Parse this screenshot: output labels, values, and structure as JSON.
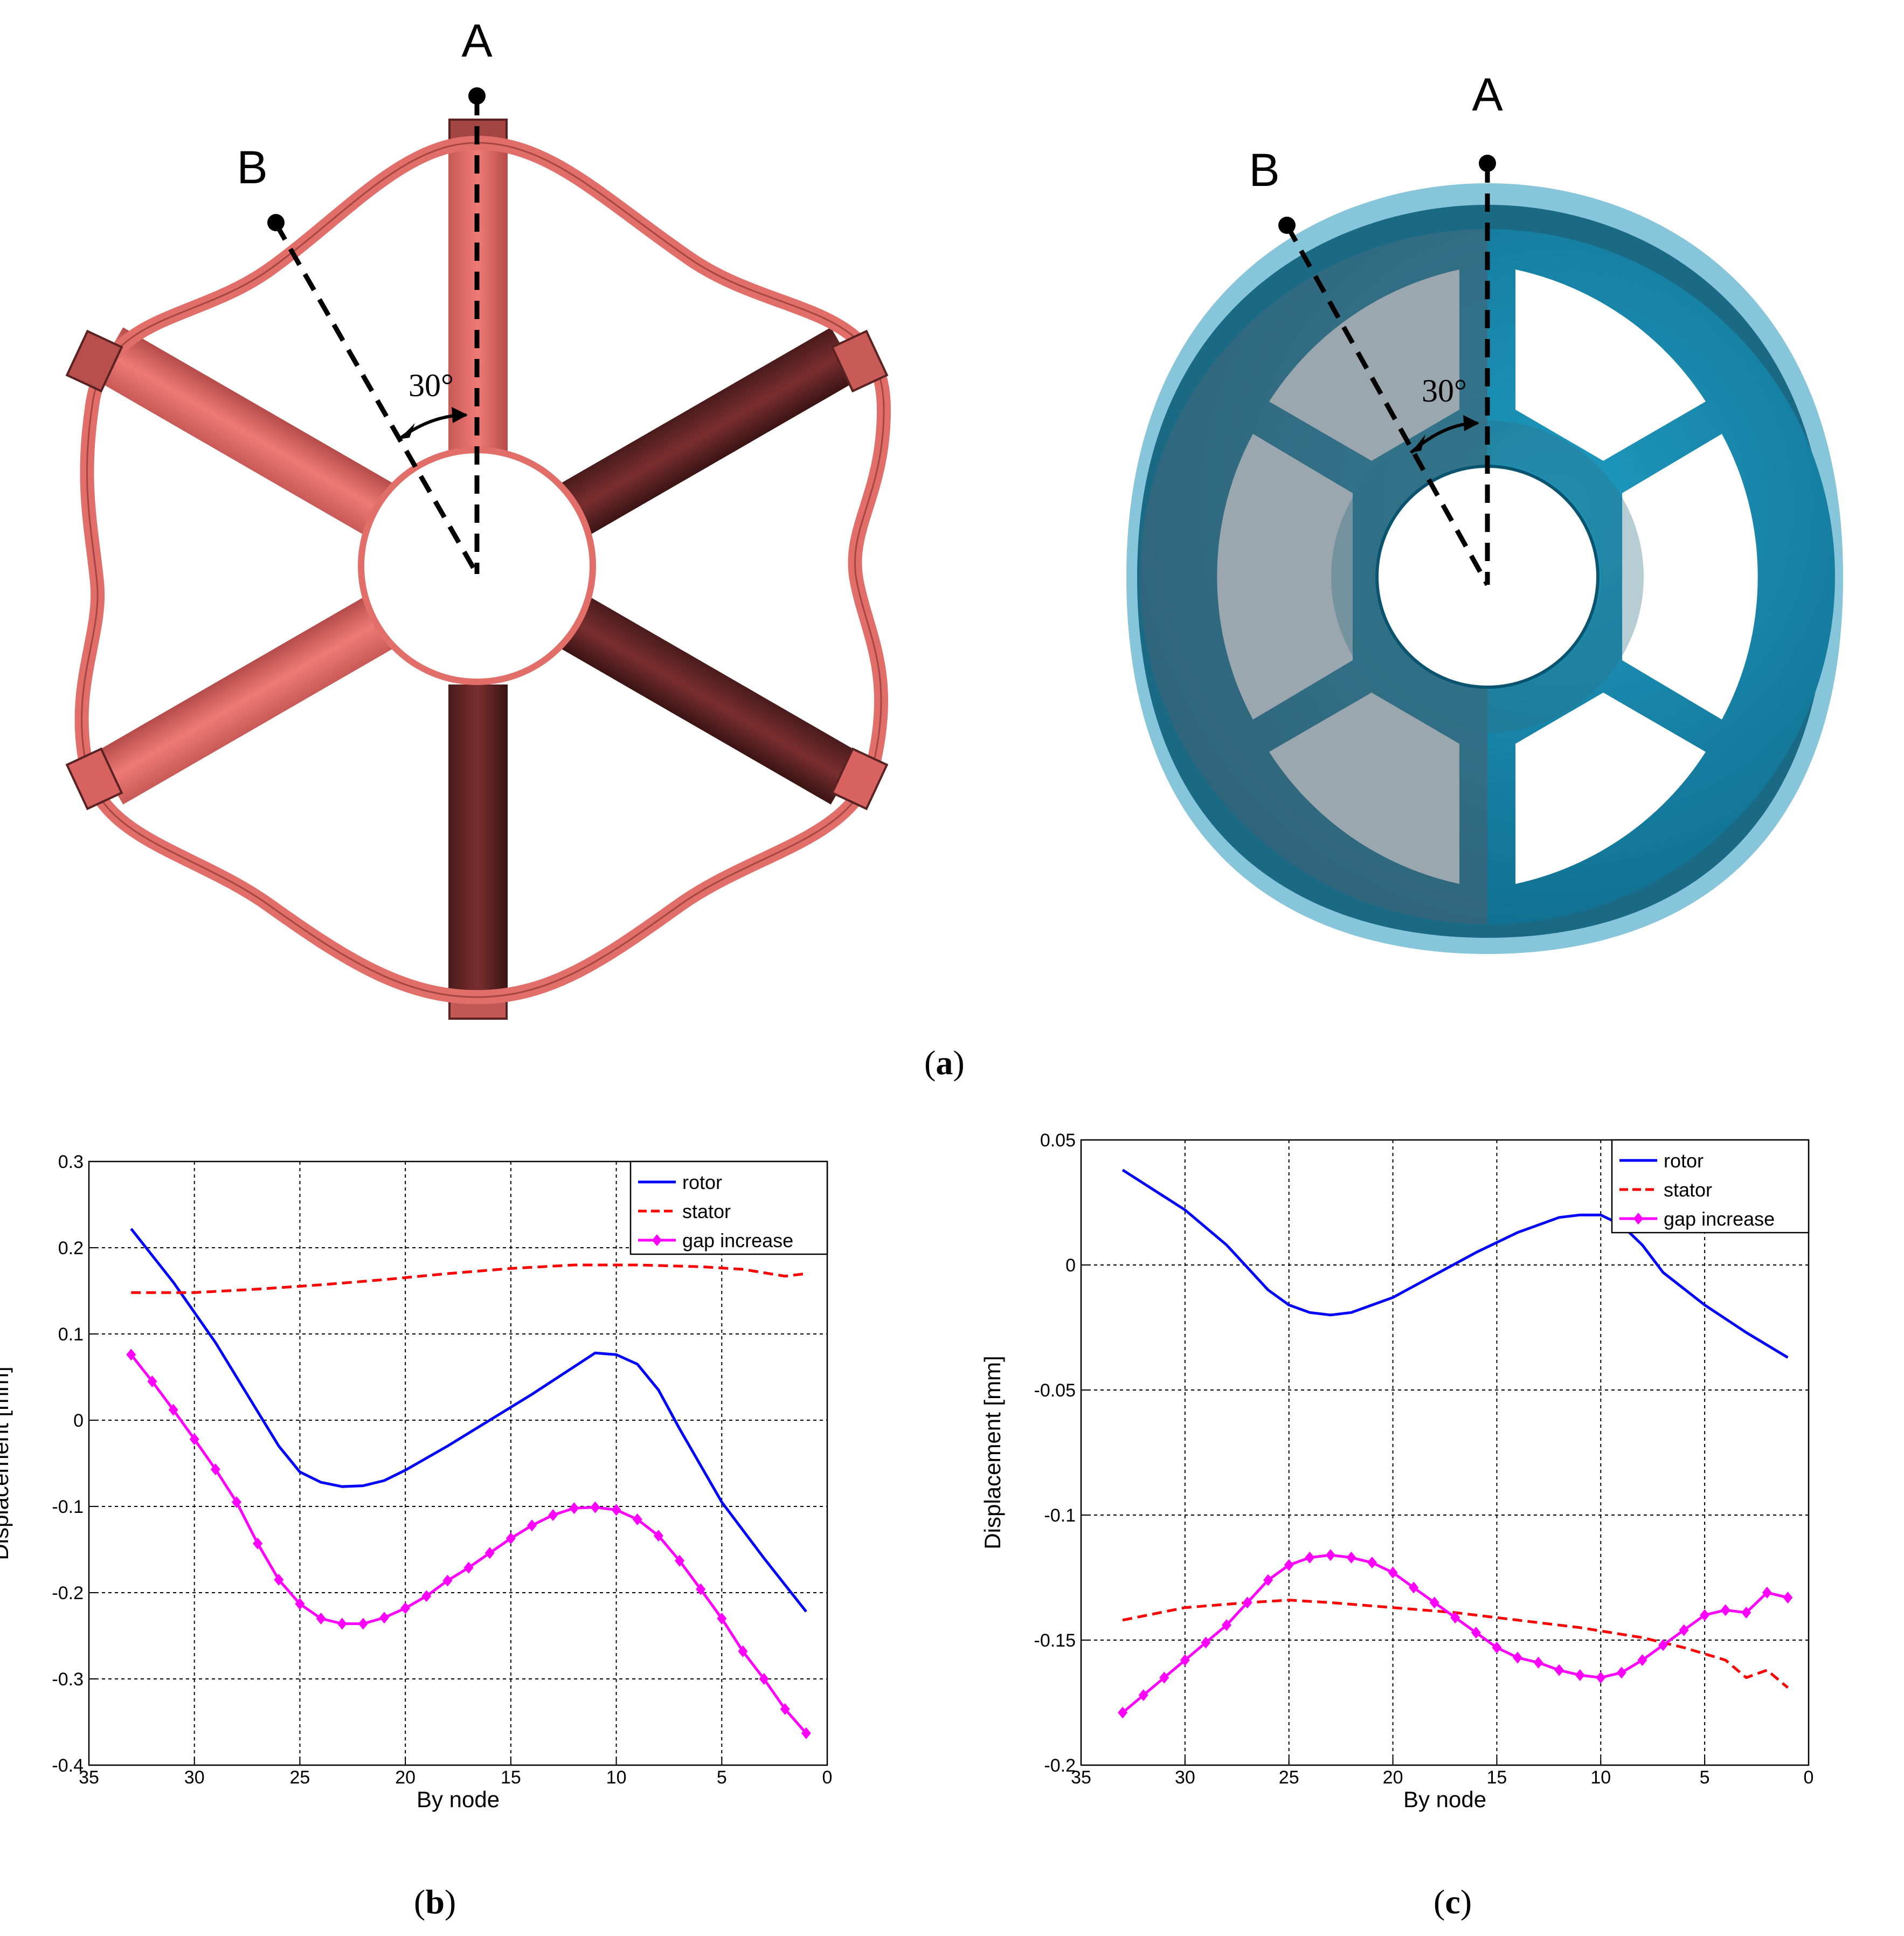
{
  "figure": {
    "panel_a": {
      "caption_letter": "a",
      "left_model": {
        "label_a": "A",
        "label_b": "B",
        "angle_label": "30°",
        "color": "#e8706b"
      },
      "right_model": {
        "label_a": "A",
        "label_b": "B",
        "angle_label": "30°",
        "color": "#1a8fb0"
      }
    },
    "panel_b": {
      "caption_letter": "b"
    },
    "panel_c": {
      "caption_letter": "c"
    }
  },
  "chart_data": [
    {
      "type": "line",
      "xlabel": "By node",
      "ylabel": "Displacement [mm]",
      "xlim": [
        35,
        0
      ],
      "ylim": [
        -0.4,
        0.3
      ],
      "x_reversed": true,
      "xticks": [
        35,
        30,
        25,
        20,
        15,
        10,
        5,
        0
      ],
      "yticks": [
        0.3,
        0.2,
        0.1,
        0,
        -0.1,
        -0.2,
        -0.3,
        -0.4
      ],
      "grid": true,
      "legend_position": "top-right",
      "series": [
        {
          "name": "rotor",
          "color": "#0000ff",
          "style": "solid",
          "markers": false,
          "x": [
            33,
            31,
            29,
            27,
            26,
            25,
            24,
            23,
            22,
            21,
            20,
            18,
            16,
            14,
            12,
            11,
            10,
            9,
            8,
            7,
            5,
            3,
            1
          ],
          "values": [
            0.222,
            0.16,
            0.09,
            0.01,
            -0.03,
            -0.06,
            -0.072,
            -0.077,
            -0.076,
            -0.07,
            -0.058,
            -0.03,
            0.0,
            0.03,
            0.062,
            0.078,
            0.076,
            0.065,
            0.035,
            -0.01,
            -0.095,
            -0.16,
            -0.222
          ]
        },
        {
          "name": "stator",
          "color": "#ff0000",
          "style": "dashed",
          "markers": false,
          "x": [
            33,
            30,
            27,
            24,
            21,
            18,
            15,
            12,
            9,
            6,
            4,
            2,
            1
          ],
          "values": [
            0.148,
            0.148,
            0.152,
            0.157,
            0.163,
            0.17,
            0.176,
            0.18,
            0.18,
            0.178,
            0.175,
            0.167,
            0.17
          ]
        },
        {
          "name": "gap increase",
          "color": "#ff00ff",
          "style": "solid",
          "markers": true,
          "x": [
            33,
            32,
            31,
            30,
            29,
            28,
            27,
            26,
            25,
            24,
            23,
            22,
            21,
            20,
            19,
            18,
            17,
            16,
            15,
            14,
            13,
            12,
            11,
            10,
            9,
            8,
            7,
            6,
            5,
            4,
            3,
            2,
            1
          ],
          "values": [
            0.076,
            0.045,
            0.012,
            -0.022,
            -0.057,
            -0.095,
            -0.143,
            -0.185,
            -0.213,
            -0.23,
            -0.236,
            -0.236,
            -0.229,
            -0.218,
            -0.204,
            -0.186,
            -0.171,
            -0.154,
            -0.137,
            -0.122,
            -0.11,
            -0.102,
            -0.101,
            -0.104,
            -0.115,
            -0.134,
            -0.163,
            -0.196,
            -0.23,
            -0.268,
            -0.3,
            -0.335,
            -0.363
          ]
        }
      ]
    },
    {
      "type": "line",
      "xlabel": "By node",
      "ylabel": "Displacement [mm]",
      "xlim": [
        35,
        0
      ],
      "ylim": [
        -0.2,
        0.05
      ],
      "x_reversed": true,
      "xticks": [
        35,
        30,
        25,
        20,
        15,
        10,
        5,
        0
      ],
      "yticks": [
        0.05,
        0,
        -0.05,
        -0.1,
        -0.15,
        -0.2
      ],
      "grid": true,
      "legend_position": "top-right",
      "series": [
        {
          "name": "rotor",
          "color": "#0000ff",
          "style": "solid",
          "markers": false,
          "x": [
            33,
            30,
            28,
            26,
            25,
            24,
            23,
            22,
            20,
            18,
            16,
            14,
            12,
            11,
            10,
            9,
            8,
            7,
            5,
            3,
            1
          ],
          "values": [
            0.038,
            0.022,
            0.008,
            -0.01,
            -0.016,
            -0.019,
            -0.02,
            -0.019,
            -0.013,
            -0.004,
            0.005,
            0.013,
            0.019,
            0.02,
            0.02,
            0.016,
            0.008,
            -0.003,
            -0.016,
            -0.027,
            -0.037
          ]
        },
        {
          "name": "stator",
          "color": "#ff0000",
          "style": "dashed",
          "markers": false,
          "x": [
            33,
            30,
            27,
            25,
            23,
            20,
            17,
            14,
            11,
            8,
            6,
            4,
            3,
            2,
            1
          ],
          "values": [
            -0.142,
            -0.137,
            -0.135,
            -0.134,
            -0.135,
            -0.137,
            -0.139,
            -0.142,
            -0.145,
            -0.149,
            -0.153,
            -0.158,
            -0.165,
            -0.162,
            -0.169
          ]
        },
        {
          "name": "gap increase",
          "color": "#ff00ff",
          "style": "solid",
          "markers": true,
          "x": [
            33,
            32,
            31,
            30,
            29,
            28,
            27,
            26,
            25,
            24,
            23,
            22,
            21,
            20,
            19,
            18,
            17,
            16,
            15,
            14,
            13,
            12,
            11,
            10,
            9,
            8,
            7,
            6,
            5,
            4,
            3,
            2,
            1
          ],
          "values": [
            -0.179,
            -0.172,
            -0.165,
            -0.158,
            -0.151,
            -0.144,
            -0.135,
            -0.126,
            -0.12,
            -0.117,
            -0.116,
            -0.117,
            -0.119,
            -0.123,
            -0.129,
            -0.135,
            -0.141,
            -0.147,
            -0.153,
            -0.157,
            -0.159,
            -0.162,
            -0.164,
            -0.165,
            -0.163,
            -0.158,
            -0.152,
            -0.146,
            -0.14,
            -0.138,
            -0.139,
            -0.131,
            -0.133
          ]
        }
      ]
    }
  ]
}
